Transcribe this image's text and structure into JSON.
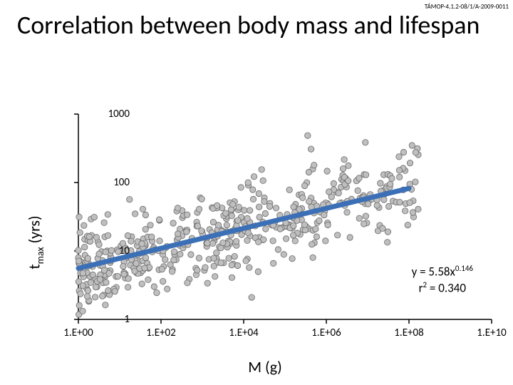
{
  "grant_code": "TÁMOP-4.1.2-08/1/A-2009-0011",
  "title": "Correlation between body mass and lifespan",
  "chart": {
    "type": "scatter",
    "xlabel": "M (g)",
    "ylabel_main": "t",
    "ylabel_sub": "max",
    "ylabel_unit": " (yrs)",
    "xscale": "log",
    "yscale": "log",
    "xlim": [
      1,
      10000000000.0
    ],
    "ylim": [
      1,
      1000
    ],
    "xticks": [
      1,
      100,
      10000,
      1000000,
      100000000,
      10000000000
    ],
    "xtick_labels": [
      "1.E+00",
      "1.E+02",
      "1.E+04",
      "1.E+06",
      "1.E+08",
      "1.E+10"
    ],
    "yticks": [
      1,
      10,
      100,
      1000
    ],
    "ytick_labels": [
      "1",
      "10",
      "100",
      "1000"
    ],
    "background_color": "#ffffff",
    "point_fill": "#bfbfbf",
    "point_stroke": "#6b6b6b",
    "point_radius": 4.2,
    "trend_color": "#3b6fb6",
    "trend_width": 7,
    "equation_line1_a": "y = 5.58x",
    "equation_line1_exp": "0.146",
    "equation_line2_a": "r",
    "equation_line2_exp": "2",
    "equation_line2_b": " = 0.340",
    "trend_x1": 1,
    "trend_y1": 5.58,
    "trend_x2": 100000000.0,
    "trend_y2": 82.2,
    "regression": {
      "a": 5.58,
      "b": 0.146,
      "r2": 0.34
    },
    "scatter_seed": 7,
    "scatter_n": 520,
    "noise_sigma_log10": 0.32,
    "x_log10_min": 0,
    "x_log10_max": 8.3,
    "title_fontsize": 36,
    "label_fontsize": 22,
    "tick_fontsize": 15,
    "equation_fontsize": 17
  }
}
